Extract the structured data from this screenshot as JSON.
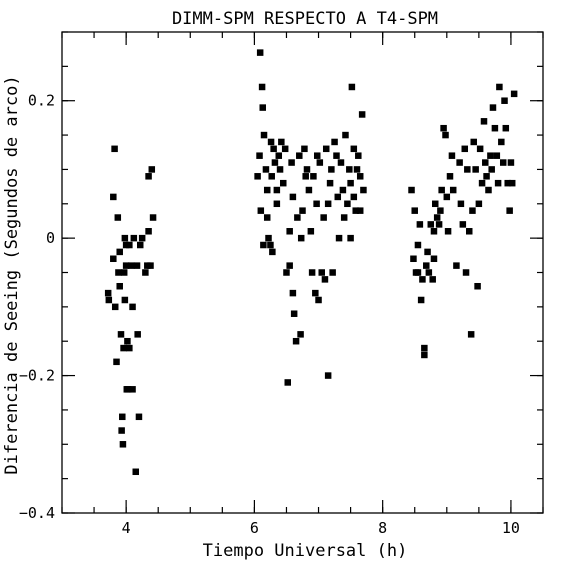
{
  "chart_data": {
    "type": "scatter",
    "title": "DIMM-SPM RESPECTO A T4-SPM",
    "xlabel": "Tiempo Universal (h)",
    "ylabel": "Diferencia de Seeing (Segundos de arco)",
    "xlim": [
      3,
      10.5
    ],
    "ylim": [
      -0.4,
      0.3
    ],
    "x_ticks": [
      4,
      6,
      8,
      10
    ],
    "x_tick_labels": [
      "4",
      "6",
      "8",
      "10"
    ],
    "y_ticks": [
      -0.4,
      -0.2,
      0,
      0.2
    ],
    "y_tick_labels": [
      "−0.4",
      "−0.2",
      "0",
      "0.2"
    ],
    "x_minor_step": 0.5,
    "y_minor_step": 0.05,
    "grid": false,
    "legend": "none",
    "marker": "filled-square",
    "color": "#000000",
    "points": [
      [
        3.72,
        -0.08
      ],
      [
        3.73,
        -0.09
      ],
      [
        3.8,
        -0.03
      ],
      [
        3.82,
        0.13
      ],
      [
        3.8,
        0.06
      ],
      [
        3.83,
        -0.1
      ],
      [
        3.85,
        -0.18
      ],
      [
        3.87,
        0.03
      ],
      [
        3.88,
        -0.05
      ],
      [
        3.9,
        -0.02
      ],
      [
        3.9,
        -0.07
      ],
      [
        3.92,
        -0.14
      ],
      [
        3.93,
        -0.28
      ],
      [
        3.94,
        -0.26
      ],
      [
        3.95,
        -0.3
      ],
      [
        3.96,
        -0.16
      ],
      [
        3.97,
        -0.05
      ],
      [
        3.98,
        0.0
      ],
      [
        3.98,
        -0.09
      ],
      [
        4.0,
        -0.01
      ],
      [
        4.0,
        -0.04
      ],
      [
        4.01,
        -0.22
      ],
      [
        4.02,
        -0.15
      ],
      [
        4.03,
        -0.22
      ],
      [
        4.05,
        -0.16
      ],
      [
        4.05,
        -0.01
      ],
      [
        4.08,
        -0.04
      ],
      [
        4.1,
        -0.1
      ],
      [
        4.1,
        -0.22
      ],
      [
        4.12,
        0.0
      ],
      [
        4.15,
        -0.34
      ],
      [
        4.17,
        -0.04
      ],
      [
        4.18,
        -0.14
      ],
      [
        4.2,
        -0.26
      ],
      [
        4.22,
        -0.01
      ],
      [
        4.25,
        0.0
      ],
      [
        4.3,
        -0.05
      ],
      [
        4.33,
        -0.04
      ],
      [
        4.35,
        0.09
      ],
      [
        4.35,
        0.01
      ],
      [
        4.38,
        -0.04
      ],
      [
        4.4,
        0.1
      ],
      [
        4.42,
        0.03
      ],
      [
        6.05,
        0.09
      ],
      [
        6.08,
        0.12
      ],
      [
        6.09,
        0.27
      ],
      [
        6.1,
        0.04
      ],
      [
        6.12,
        0.22
      ],
      [
        6.13,
        0.19
      ],
      [
        6.14,
        -0.01
      ],
      [
        6.15,
        0.15
      ],
      [
        6.18,
        0.1
      ],
      [
        6.2,
        0.07
      ],
      [
        6.2,
        0.03
      ],
      [
        6.22,
        0.0
      ],
      [
        6.25,
        -0.01
      ],
      [
        6.26,
        0.14
      ],
      [
        6.27,
        0.09
      ],
      [
        6.28,
        -0.02
      ],
      [
        6.3,
        0.13
      ],
      [
        6.32,
        0.11
      ],
      [
        6.35,
        0.07
      ],
      [
        6.35,
        0.05
      ],
      [
        6.38,
        0.12
      ],
      [
        6.4,
        0.1
      ],
      [
        6.42,
        0.14
      ],
      [
        6.45,
        0.08
      ],
      [
        6.48,
        0.13
      ],
      [
        6.5,
        -0.05
      ],
      [
        6.52,
        -0.21
      ],
      [
        6.55,
        -0.04
      ],
      [
        6.55,
        0.01
      ],
      [
        6.58,
        0.11
      ],
      [
        6.6,
        -0.08
      ],
      [
        6.6,
        0.06
      ],
      [
        6.62,
        -0.11
      ],
      [
        6.65,
        -0.15
      ],
      [
        6.67,
        0.03
      ],
      [
        6.7,
        0.12
      ],
      [
        6.72,
        -0.14
      ],
      [
        6.73,
        0.0
      ],
      [
        6.75,
        0.04
      ],
      [
        6.78,
        0.13
      ],
      [
        6.8,
        0.09
      ],
      [
        6.82,
        0.1
      ],
      [
        6.85,
        0.07
      ],
      [
        6.88,
        0.01
      ],
      [
        6.9,
        -0.05
      ],
      [
        6.92,
        0.09
      ],
      [
        6.95,
        -0.08
      ],
      [
        6.97,
        0.05
      ],
      [
        6.98,
        0.12
      ],
      [
        7.0,
        -0.09
      ],
      [
        7.02,
        0.11
      ],
      [
        7.05,
        -0.05
      ],
      [
        7.08,
        0.03
      ],
      [
        7.1,
        -0.06
      ],
      [
        7.12,
        0.13
      ],
      [
        7.15,
        -0.2
      ],
      [
        7.15,
        0.05
      ],
      [
        7.18,
        0.08
      ],
      [
        7.2,
        0.1
      ],
      [
        7.22,
        -0.05
      ],
      [
        7.25,
        0.14
      ],
      [
        7.28,
        0.12
      ],
      [
        7.3,
        0.06
      ],
      [
        7.32,
        0.0
      ],
      [
        7.35,
        0.11
      ],
      [
        7.38,
        0.07
      ],
      [
        7.4,
        0.03
      ],
      [
        7.42,
        0.15
      ],
      [
        7.45,
        0.05
      ],
      [
        7.48,
        0.1
      ],
      [
        7.5,
        0.08
      ],
      [
        7.5,
        0.0
      ],
      [
        7.52,
        0.22
      ],
      [
        7.55,
        0.13
      ],
      [
        7.55,
        0.06
      ],
      [
        7.58,
        0.04
      ],
      [
        7.6,
        0.1
      ],
      [
        7.62,
        0.12
      ],
      [
        7.65,
        0.09
      ],
      [
        7.65,
        0.04
      ],
      [
        7.68,
        0.18
      ],
      [
        7.7,
        0.07
      ],
      [
        8.45,
        0.07
      ],
      [
        8.48,
        -0.03
      ],
      [
        8.5,
        0.04
      ],
      [
        8.52,
        -0.05
      ],
      [
        8.55,
        -0.01
      ],
      [
        8.55,
        -0.05
      ],
      [
        8.58,
        0.02
      ],
      [
        8.6,
        -0.09
      ],
      [
        8.62,
        -0.06
      ],
      [
        8.65,
        -0.17
      ],
      [
        8.65,
        -0.16
      ],
      [
        8.68,
        -0.04
      ],
      [
        8.7,
        -0.02
      ],
      [
        8.72,
        -0.05
      ],
      [
        8.75,
        0.02
      ],
      [
        8.78,
        -0.06
      ],
      [
        8.8,
        0.01
      ],
      [
        8.8,
        -0.03
      ],
      [
        8.82,
        0.05
      ],
      [
        8.85,
        0.03
      ],
      [
        8.88,
        0.02
      ],
      [
        8.9,
        0.04
      ],
      [
        8.92,
        0.07
      ],
      [
        8.95,
        0.16
      ],
      [
        8.98,
        0.15
      ],
      [
        9.0,
        0.06
      ],
      [
        9.02,
        0.01
      ],
      [
        9.05,
        0.09
      ],
      [
        9.08,
        0.12
      ],
      [
        9.1,
        0.07
      ],
      [
        9.15,
        -0.04
      ],
      [
        9.2,
        0.11
      ],
      [
        9.22,
        0.05
      ],
      [
        9.25,
        0.02
      ],
      [
        9.28,
        0.13
      ],
      [
        9.3,
        -0.05
      ],
      [
        9.32,
        0.1
      ],
      [
        9.35,
        0.01
      ],
      [
        9.38,
        -0.14
      ],
      [
        9.4,
        0.04
      ],
      [
        9.42,
        0.14
      ],
      [
        9.45,
        0.1
      ],
      [
        9.48,
        -0.07
      ],
      [
        9.5,
        0.05
      ],
      [
        9.52,
        0.13
      ],
      [
        9.55,
        0.08
      ],
      [
        9.58,
        0.17
      ],
      [
        9.6,
        0.11
      ],
      [
        9.62,
        0.09
      ],
      [
        9.65,
        0.07
      ],
      [
        9.68,
        0.12
      ],
      [
        9.7,
        0.1
      ],
      [
        9.72,
        0.19
      ],
      [
        9.75,
        0.16
      ],
      [
        9.78,
        0.12
      ],
      [
        9.8,
        0.08
      ],
      [
        9.82,
        0.22
      ],
      [
        9.85,
        0.14
      ],
      [
        9.88,
        0.11
      ],
      [
        9.9,
        0.2
      ],
      [
        9.92,
        0.16
      ],
      [
        9.95,
        0.08
      ],
      [
        9.98,
        0.04
      ],
      [
        10.0,
        0.11
      ],
      [
        10.02,
        0.08
      ],
      [
        10.05,
        0.21
      ]
    ]
  }
}
